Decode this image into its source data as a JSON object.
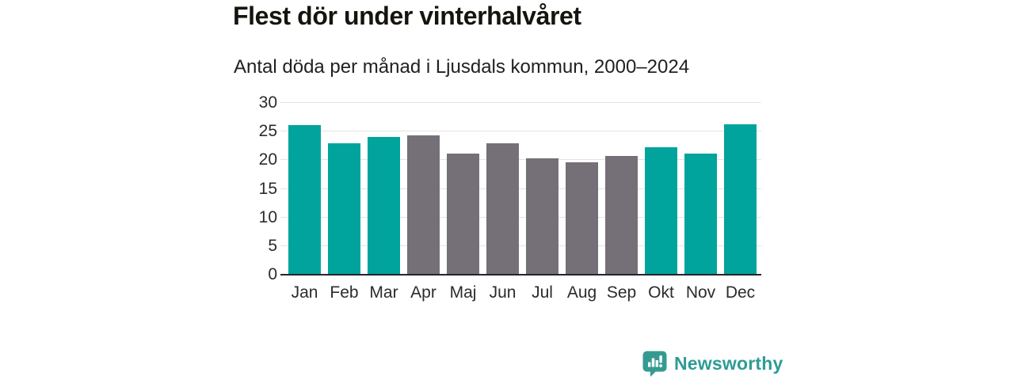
{
  "header": {
    "title": "Flest dör under vinterhalvåret",
    "subtitle": "Antal döda per månad i Ljusdals kommun, 2000–2024"
  },
  "chart_data": {
    "type": "bar",
    "categories": [
      "Jan",
      "Feb",
      "Mar",
      "Apr",
      "Maj",
      "Jun",
      "Jul",
      "Aug",
      "Sep",
      "Okt",
      "Nov",
      "Dec"
    ],
    "values": [
      26.1,
      23.0,
      24.0,
      24.4,
      21.1,
      22.9,
      20.3,
      19.6,
      20.8,
      22.2,
      21.2,
      26.3
    ],
    "bar_colors": [
      "teal",
      "teal",
      "teal",
      "gray",
      "gray",
      "gray",
      "gray",
      "gray",
      "gray",
      "teal",
      "teal",
      "teal"
    ],
    "title": "Flest dör under vinterhalvåret",
    "subtitle": "Antal döda per månad i Ljusdals kommun, 2000–2024",
    "xlabel": "",
    "ylabel": "",
    "ylim": [
      0,
      30
    ],
    "yticks": [
      0,
      5,
      10,
      15,
      20,
      25,
      30
    ],
    "grid": true,
    "legend": false,
    "colors": {
      "teal": "#00A49C",
      "gray": "#757078",
      "gridline": "#e4e4e7",
      "baseline": "#27242b"
    }
  },
  "footer": {
    "brand": "Newsworthy",
    "brand_color": "#2E9C94",
    "logo_icon": "bar-chart-speech-bubble-icon",
    "logo_color": "#359B92"
  }
}
